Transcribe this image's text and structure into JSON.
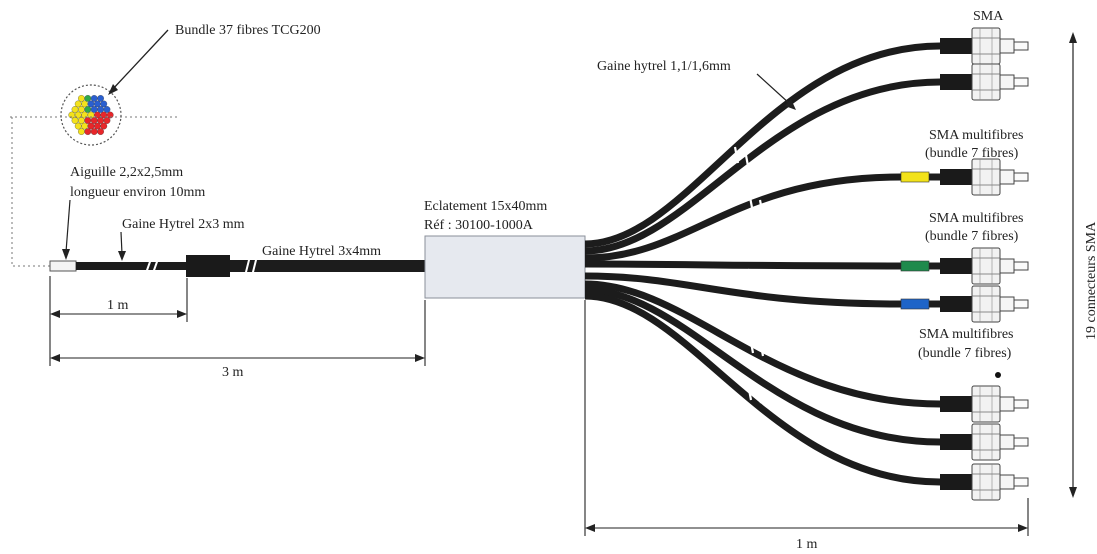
{
  "labels": {
    "bundle": "Bundle 37 fibres TCG200",
    "needle_line1": "Aiguille 2,2x2,5mm",
    "needle_line2": "longueur environ 10mm",
    "sheath_small": "Gaine Hytrel 2x3 mm",
    "sheath_large": "Gaine Hytrel 3x4mm",
    "breakout_line1": "Eclatement 15x40mm",
    "breakout_line2": "Réf : 30100-1000A",
    "sheath_branch": "Gaine hytrel 1,1/1,6mm",
    "sma_top": "SMA",
    "sma_multi_a1": "SMA multifibres",
    "sma_multi_a2": "(bundle 7 fibres)",
    "sma_multi_b1": "SMA multifibres",
    "sma_multi_b2": "(bundle 7 fibres)",
    "sma_multi_c1": "SMA multifibres",
    "sma_multi_c2": "(bundle 7 fibres)",
    "connectors_count": "19 connecteurs SMA",
    "dim_1m_left": "1 m",
    "dim_3m": "3 m",
    "dim_1m_right": "1 m"
  },
  "colors": {
    "cable": "#1c1c1c",
    "breakout_box": "#e6e9ef",
    "marker_yellow": "#f2e21a",
    "marker_green": "#1f8a4c",
    "marker_blue": "#1e64c8",
    "bundle_red": "#e8262a",
    "bundle_blue": "#2a5fd0",
    "bundle_green": "#2fa84a",
    "bundle_yellow": "#f4e21c",
    "bundle_purple": "#8b3aa8"
  }
}
